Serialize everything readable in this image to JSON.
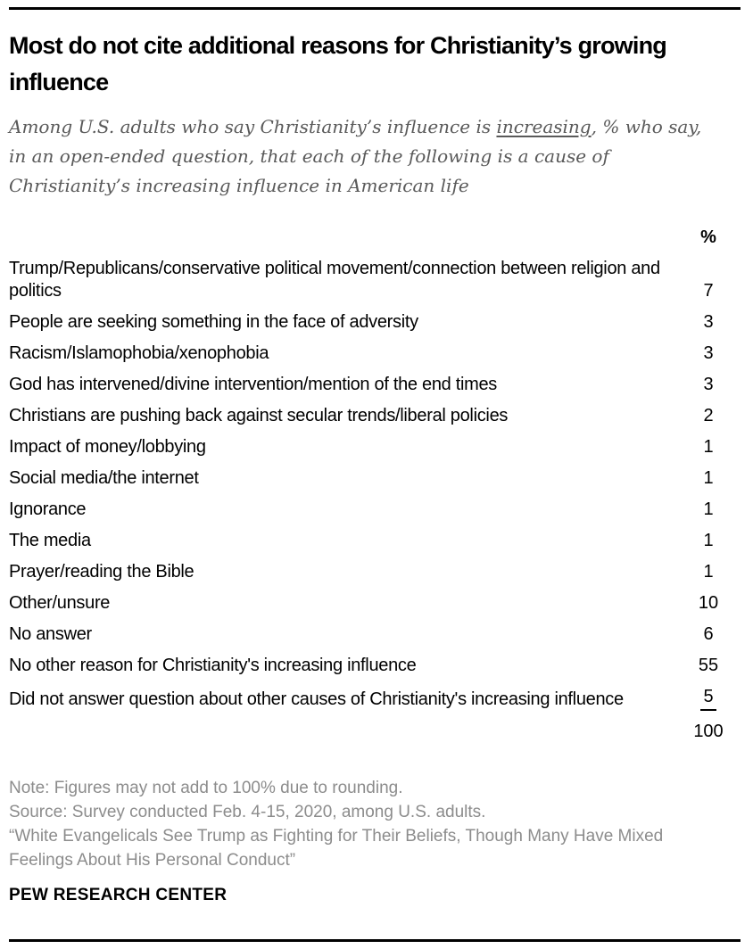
{
  "header": {
    "title": "Most do not cite additional reasons for Christianity’s growing influence",
    "subtitle_pre": "Among U.S. adults who say Christianity’s influence is ",
    "subtitle_underlined": "increasing",
    "subtitle_post": ", % who say, in an open-ended question, that each of the following is a cause of Christianity’s increasing influence in American life"
  },
  "table": {
    "value_column_header": "%",
    "rows": [
      {
        "label": "Trump/Republicans/conservative political movement/connection between religion and politics",
        "value": "7"
      },
      {
        "label": "People are seeking something in the face of adversity",
        "value": "3"
      },
      {
        "label": "Racism/Islamophobia/xenophobia",
        "value": "3"
      },
      {
        "label": "God has intervened/divine intervention/mention of the end times",
        "value": "3"
      },
      {
        "label": "Christians are pushing back against secular trends/liberal policies",
        "value": "2"
      },
      {
        "label": "Impact of money/lobbying",
        "value": "1"
      },
      {
        "label": "Social media/the internet",
        "value": "1"
      },
      {
        "label": "Ignorance",
        "value": "1"
      },
      {
        "label": "The media",
        "value": "1"
      },
      {
        "label": "Prayer/reading the Bible",
        "value": "1"
      },
      {
        "label": "Other/unsure",
        "value": "10"
      },
      {
        "label": "No answer",
        "value": "6"
      },
      {
        "label": "No other reason for Christianity's increasing influence",
        "value": "55"
      },
      {
        "label": "Did not answer question about other causes of Christianity's increasing influence",
        "value": "5"
      }
    ],
    "total": "100"
  },
  "footer": {
    "note": "Note: Figures may not add to 100% due to rounding.",
    "source": "Source: Survey conducted Feb. 4-15, 2020, among U.S. adults.",
    "report": "“White Evangelicals See Trump as Fighting for Their Beliefs, Though Many Have Mixed Feelings About His Personal Conduct”",
    "brand": "PEW RESEARCH CENTER"
  },
  "chart_data": {
    "type": "table",
    "title": "Most do not cite additional reasons for Christianity’s growing influence",
    "subtitle": "Among U.S. adults who say Christianity’s influence is increasing, % who say, in an open-ended question, that each of the following is a cause of Christianity’s increasing influence in American life",
    "value_header": "%",
    "categories": [
      "Trump/Republicans/conservative political movement/connection between religion and politics",
      "People are seeking something in the face of adversity",
      "Racism/Islamophobia/xenophobia",
      "God has intervened/divine intervention/mention of the end times",
      "Christians are pushing back against secular trends/liberal policies",
      "Impact of money/lobbying",
      "Social media/the internet",
      "Ignorance",
      "The media",
      "Prayer/reading the Bible",
      "Other/unsure",
      "No answer",
      "No other reason for Christianity's increasing influence",
      "Did not answer question about other causes of Christianity's increasing influence"
    ],
    "values": [
      7,
      3,
      3,
      3,
      2,
      1,
      1,
      1,
      1,
      1,
      10,
      6,
      55,
      5
    ],
    "total": 100,
    "notes": [
      "Note: Figures may not add to 100% due to rounding.",
      "Source: Survey conducted Feb. 4-15, 2020, among U.S. adults.",
      "“White Evangelicals See Trump as Fighting for Their Beliefs, Though Many Have Mixed Feelings About His Personal Conduct”"
    ],
    "source_org": "PEW RESEARCH CENTER"
  }
}
